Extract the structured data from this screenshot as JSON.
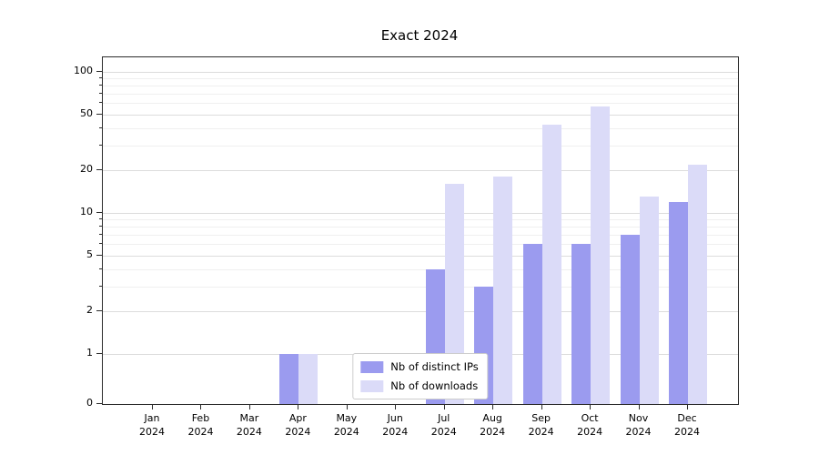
{
  "figure": {
    "title": "Exact 2024"
  },
  "chart_data": {
    "type": "bar",
    "title": "Exact 2024",
    "x_categories_month": [
      "Jan",
      "Feb",
      "Mar",
      "Apr",
      "May",
      "Jun",
      "Jul",
      "Aug",
      "Sep",
      "Oct",
      "Nov",
      "Dec"
    ],
    "x_categories_year": "2024",
    "series": [
      {
        "name": "Nb of distinct IPs",
        "color": "#9b9bef",
        "values": [
          0,
          0,
          0,
          1,
          0,
          0,
          4,
          3,
          6,
          6,
          7,
          12
        ]
      },
      {
        "name": "Nb of downloads",
        "color": "#dbdbf8",
        "values": [
          0,
          0,
          0,
          1,
          0,
          0,
          16,
          18,
          42,
          57,
          13,
          22
        ]
      }
    ],
    "y_scale": "symlog",
    "y_range": [
      0,
      100
    ],
    "y_ticks": [
      0,
      1,
      2,
      5,
      10,
      20,
      50,
      100
    ],
    "y_minor_ticks": [
      3,
      4,
      6,
      7,
      8,
      9,
      30,
      40,
      60,
      70,
      80,
      90
    ],
    "grid": "horizontal",
    "legend_position": "lower center"
  }
}
